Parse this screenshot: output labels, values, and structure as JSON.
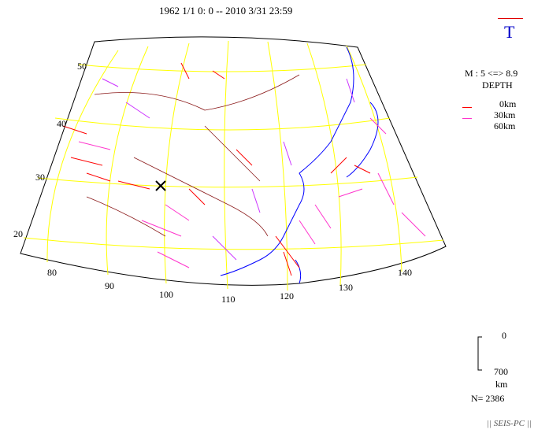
{
  "header": {
    "title": "1962 1/1 0: 0 -- 2010 3/31 23:59",
    "component": "T"
  },
  "legend": {
    "magnitude": "M : 5 <=> 8.9",
    "depth_title": "DEPTH",
    "depth_levels": [
      {
        "label": "0km",
        "color": "#ff0000"
      },
      {
        "label": "30km",
        "color": "#ff33cc"
      },
      {
        "label": "60km",
        "color": "#cc33ff"
      }
    ]
  },
  "scale": {
    "top": "0",
    "bottom": "700",
    "unit": "km"
  },
  "count": "N= 2386",
  "brand": "|| SEIS-PC ||",
  "map": {
    "lon_labels": [
      "80",
      "90",
      "100",
      "110",
      "120",
      "130",
      "140"
    ],
    "lat_labels": [
      "20",
      "30",
      "40",
      "50"
    ],
    "marker": "X",
    "colors": {
      "border": "#8b1a1a",
      "coast": "#0000ff",
      "grid": "#ffff00"
    }
  }
}
